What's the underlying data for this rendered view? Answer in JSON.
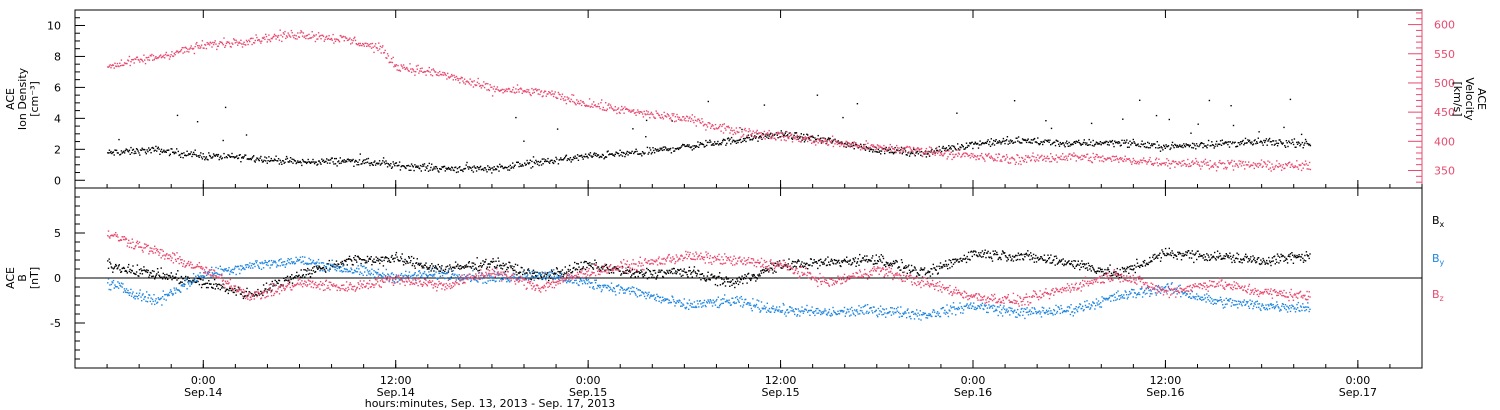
{
  "chart_data": [
    {
      "type": "scatter",
      "panel": "plasma",
      "ylabel": "ACE Ion Density [cm⁻³]",
      "ylabel_lines": [
        "ACE",
        "Ion Density",
        "[cm⁻³]"
      ],
      "ylim": [
        -0.5,
        11
      ],
      "yticks": [
        0,
        2,
        4,
        6,
        8,
        10
      ],
      "ylabel_right": "ACE Velocity [km/s]",
      "ylabel_right_lines": [
        "ACE",
        "Velocity",
        "[km/s]"
      ],
      "ylim_right": [
        320,
        625
      ],
      "yticks_right": [
        350,
        400,
        450,
        500,
        550,
        600
      ],
      "series": [
        {
          "color": "#000000",
          "axis": "left",
          "points": [
            [
              -6,
              1.8
            ],
            [
              -3,
              2.0
            ],
            [
              0,
              1.6
            ],
            [
              3,
              1.5
            ],
            [
              6,
              1.2
            ],
            [
              9,
              1.3
            ],
            [
              12,
              1.0
            ],
            [
              15,
              0.8
            ],
            [
              18,
              0.8
            ],
            [
              21,
              1.2
            ],
            [
              24,
              1.6
            ],
            [
              27,
              1.8
            ],
            [
              30,
              2.2
            ],
            [
              33,
              2.6
            ],
            [
              36,
              3.0
            ],
            [
              39,
              2.6
            ],
            [
              42,
              2.0
            ],
            [
              45,
              1.8
            ],
            [
              48,
              2.4
            ],
            [
              51,
              2.6
            ],
            [
              54,
              2.4
            ],
            [
              57,
              2.5
            ],
            [
              60,
              2.2
            ],
            [
              63,
              2.4
            ],
            [
              66,
              2.5
            ],
            [
              69,
              2.4
            ]
          ]
        },
        {
          "color": "#e84a6f",
          "axis": "right",
          "points": [
            [
              -6,
              530
            ],
            [
              -3,
              545
            ],
            [
              0,
              565
            ],
            [
              3,
              575
            ],
            [
              6,
              585
            ],
            [
              9,
              575
            ],
            [
              11,
              560
            ],
            [
              12,
              530
            ],
            [
              15,
              515
            ],
            [
              18,
              490
            ],
            [
              21,
              485
            ],
            [
              24,
              465
            ],
            [
              27,
              450
            ],
            [
              30,
              440
            ],
            [
              33,
              420
            ],
            [
              36,
              410
            ],
            [
              39,
              400
            ],
            [
              42,
              390
            ],
            [
              45,
              385
            ],
            [
              48,
              375
            ],
            [
              51,
              370
            ],
            [
              54,
              375
            ],
            [
              57,
              370
            ],
            [
              60,
              365
            ],
            [
              63,
              362
            ],
            [
              66,
              360
            ],
            [
              69,
              358
            ]
          ]
        }
      ]
    },
    {
      "type": "scatter",
      "panel": "magnetic",
      "ylabel": "ACE B [nT]",
      "ylabel_lines": [
        "ACE",
        "B",
        "[nT]"
      ],
      "ylim": [
        -10,
        10
      ],
      "yticks": [
        -5,
        0,
        5
      ],
      "zero_line": true,
      "series": [
        {
          "name": "B",
          "subscript": "x",
          "color": "#000000",
          "points": [
            [
              -6,
              1.5
            ],
            [
              -3,
              0.5
            ],
            [
              0,
              -0.5
            ],
            [
              3,
              -1.8
            ],
            [
              6,
              0.5
            ],
            [
              9,
              2.0
            ],
            [
              12,
              2.2
            ],
            [
              15,
              1.0
            ],
            [
              18,
              1.8
            ],
            [
              21,
              0.2
            ],
            [
              24,
              1.5
            ],
            [
              27,
              0.5
            ],
            [
              30,
              0.8
            ],
            [
              33,
              -0.5
            ],
            [
              36,
              1.5
            ],
            [
              39,
              1.8
            ],
            [
              42,
              2.2
            ],
            [
              45,
              0.5
            ],
            [
              48,
              2.8
            ],
            [
              51,
              2.5
            ],
            [
              54,
              1.8
            ],
            [
              57,
              0.5
            ],
            [
              60,
              2.8
            ],
            [
              63,
              2.5
            ],
            [
              66,
              2.0
            ],
            [
              69,
              2.5
            ]
          ]
        },
        {
          "name": "B",
          "subscript": "y",
          "color": "#1f86e0",
          "points": [
            [
              -6,
              -0.5
            ],
            [
              -3,
              -2.5
            ],
            [
              0,
              0.5
            ],
            [
              3,
              1.5
            ],
            [
              6,
              2.0
            ],
            [
              9,
              1.0
            ],
            [
              12,
              0.2
            ],
            [
              15,
              0.5
            ],
            [
              18,
              0.0
            ],
            [
              21,
              0.5
            ],
            [
              24,
              -0.5
            ],
            [
              27,
              -1.5
            ],
            [
              30,
              -3.0
            ],
            [
              33,
              -2.5
            ],
            [
              36,
              -3.5
            ],
            [
              39,
              -3.8
            ],
            [
              42,
              -3.5
            ],
            [
              45,
              -4.0
            ],
            [
              48,
              -3.0
            ],
            [
              51,
              -3.8
            ],
            [
              54,
              -3.5
            ],
            [
              57,
              -2.0
            ],
            [
              60,
              -1.0
            ],
            [
              63,
              -2.5
            ],
            [
              66,
              -3.0
            ],
            [
              69,
              -3.2
            ]
          ]
        },
        {
          "name": "B",
          "subscript": "z",
          "color": "#e84a6f",
          "points": [
            [
              -6,
              5.0
            ],
            [
              -3,
              3.0
            ],
            [
              0,
              1.0
            ],
            [
              3,
              -2.0
            ],
            [
              6,
              -0.5
            ],
            [
              9,
              -1.0
            ],
            [
              12,
              0.0
            ],
            [
              15,
              -0.8
            ],
            [
              18,
              0.8
            ],
            [
              21,
              -1.0
            ],
            [
              24,
              0.8
            ],
            [
              27,
              1.5
            ],
            [
              30,
              2.5
            ],
            [
              33,
              2.0
            ],
            [
              36,
              1.5
            ],
            [
              39,
              -0.5
            ],
            [
              42,
              1.0
            ],
            [
              45,
              -0.5
            ],
            [
              48,
              -2.0
            ],
            [
              51,
              -2.5
            ],
            [
              54,
              -1.0
            ],
            [
              57,
              0.5
            ],
            [
              60,
              -1.5
            ],
            [
              63,
              -0.5
            ],
            [
              66,
              -1.5
            ],
            [
              69,
              -2.0
            ]
          ]
        }
      ]
    }
  ],
  "time_axis": {
    "xlim_hours": [
      -8,
      76
    ],
    "ticks": [
      {
        "hours": 0,
        "time": "0:00",
        "date": "Sep.14"
      },
      {
        "hours": 12,
        "time": "12:00",
        "date": "Sep.14"
      },
      {
        "hours": 24,
        "time": "0:00",
        "date": "Sep.15"
      },
      {
        "hours": 36,
        "time": "12:00",
        "date": "Sep.15"
      },
      {
        "hours": 48,
        "time": "0:00",
        "date": "Sep.16"
      },
      {
        "hours": 60,
        "time": "12:00",
        "date": "Sep.16"
      },
      {
        "hours": 72,
        "time": "0:00",
        "date": "Sep.17"
      }
    ],
    "xlabel": "hours:minutes, Sep. 13, 2013 - Sep. 17, 2013"
  }
}
